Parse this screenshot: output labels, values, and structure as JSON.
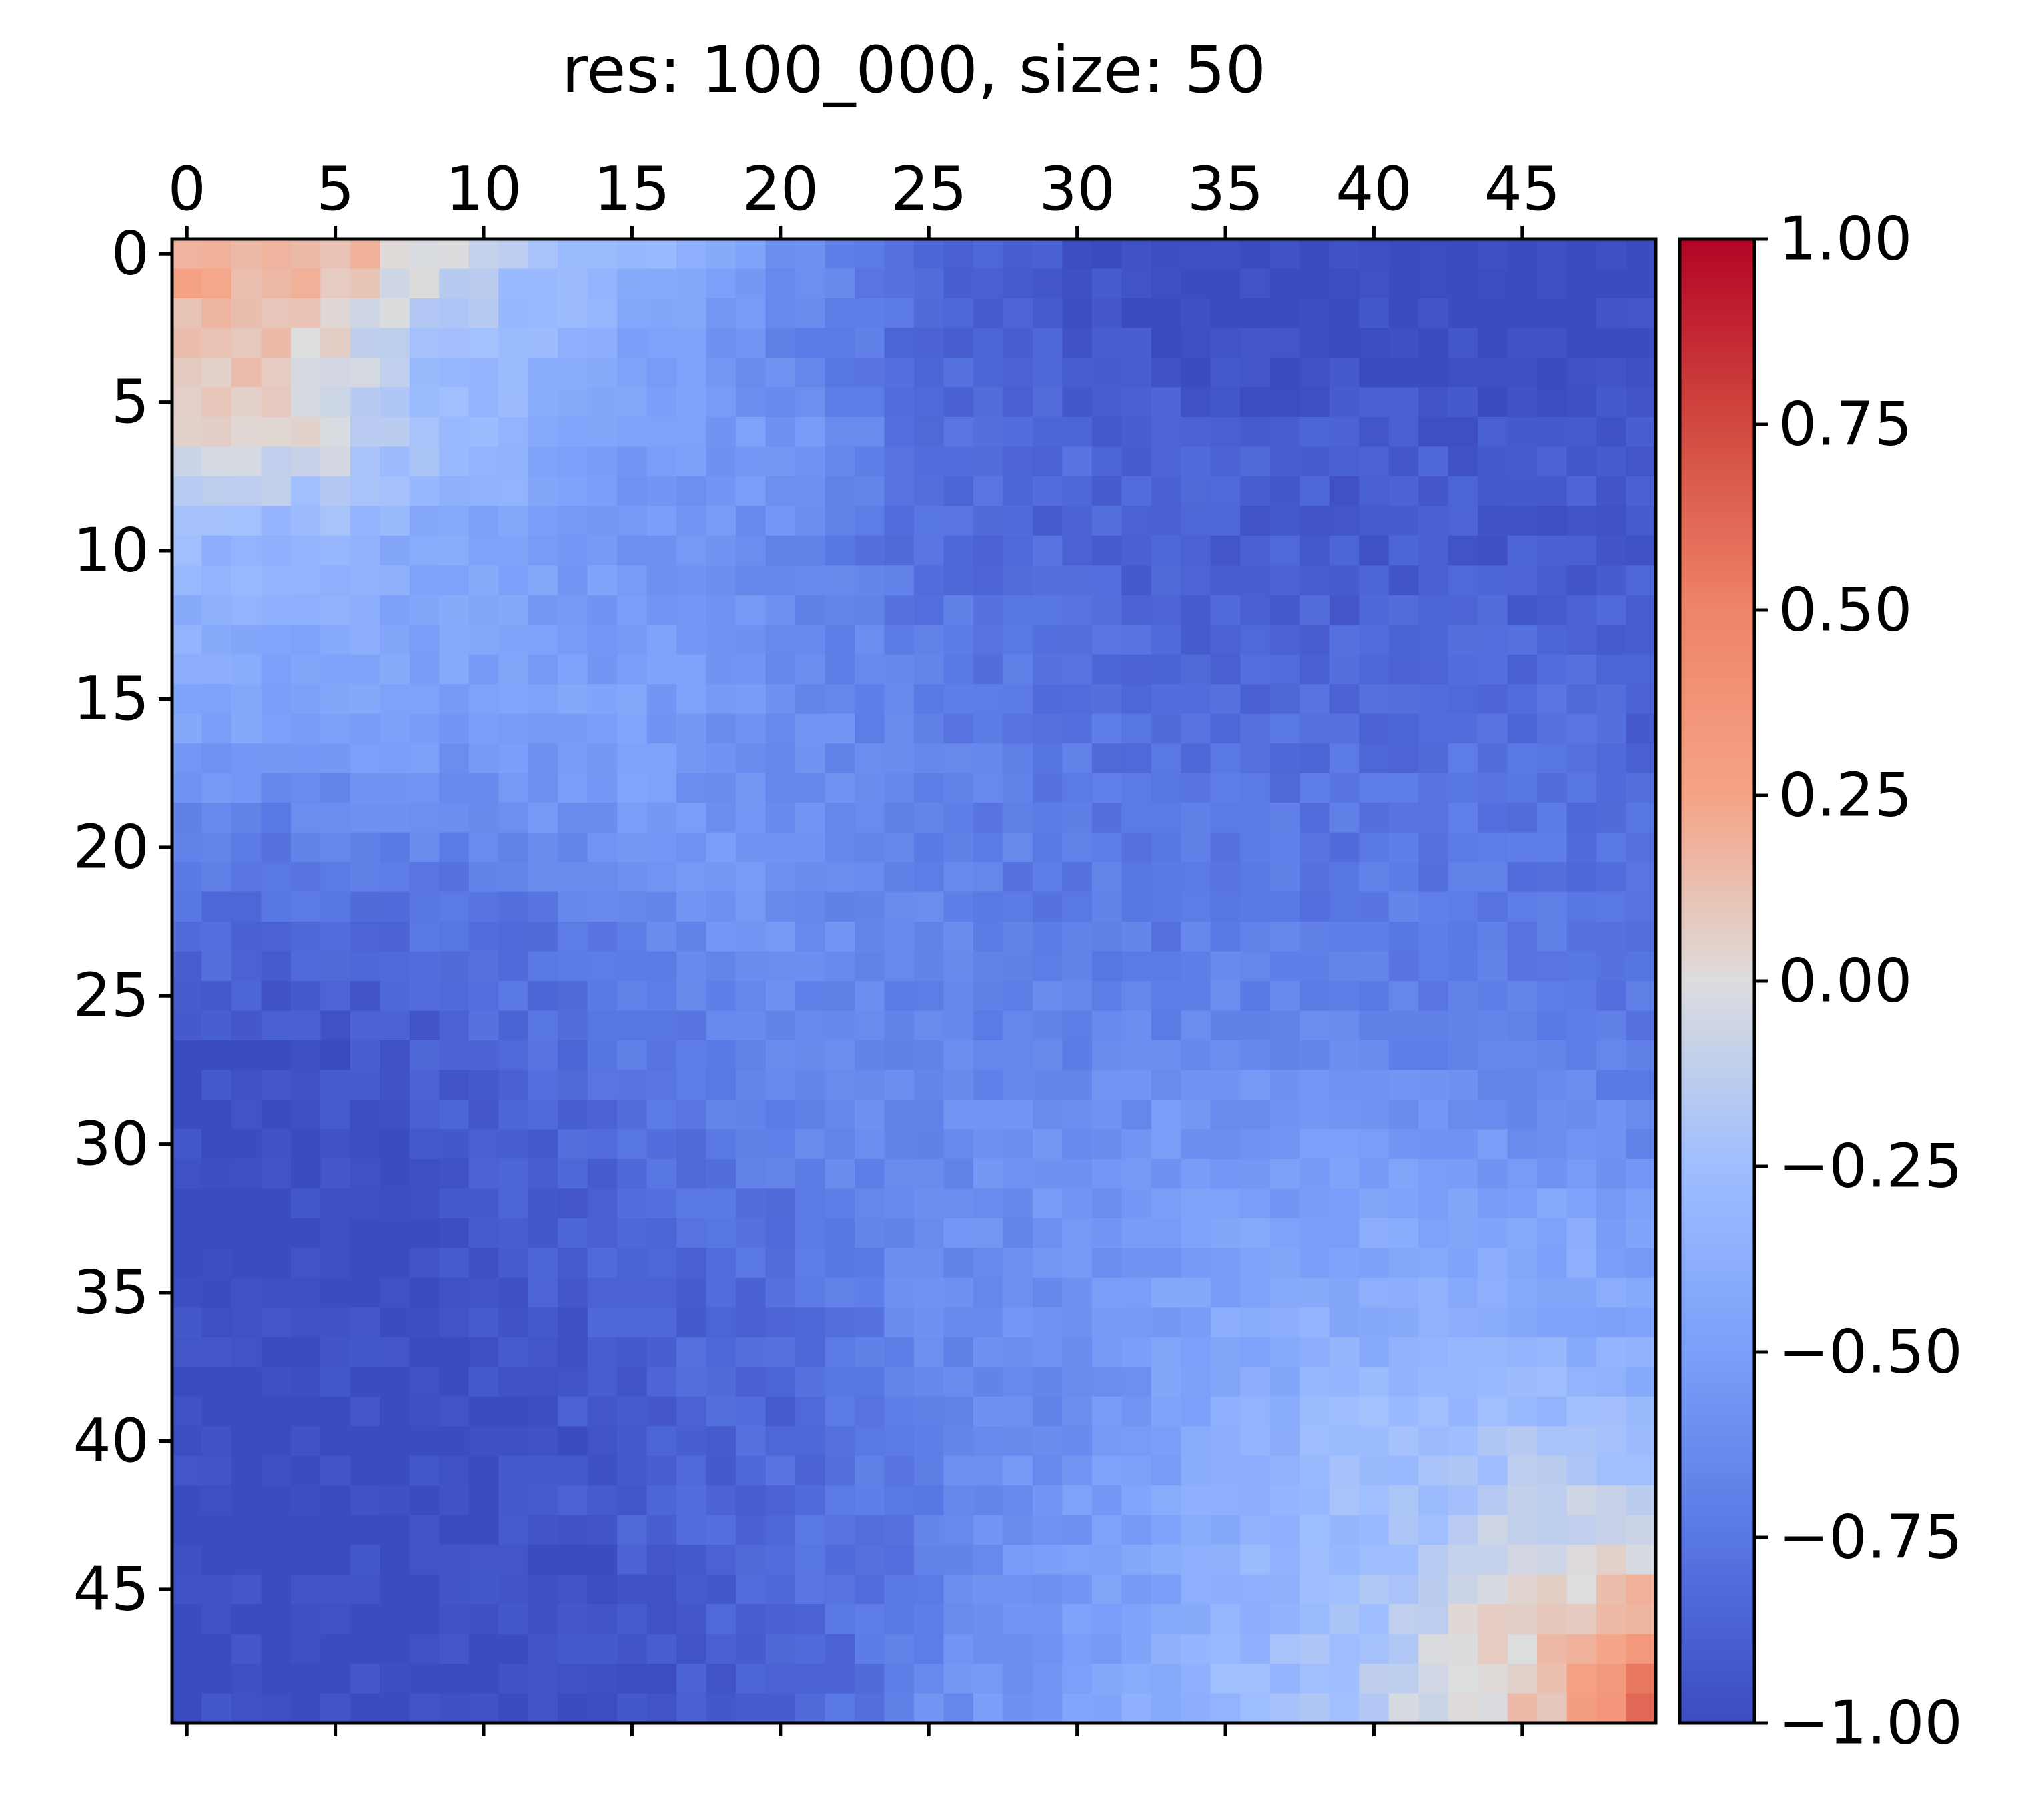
{
  "chart_data": {
    "type": "heatmap",
    "title": "res: 100_000, size: 50",
    "size": 50,
    "x_ticks": [
      0,
      5,
      10,
      15,
      20,
      25,
      30,
      35,
      40,
      45
    ],
    "y_ticks": [
      0,
      5,
      10,
      15,
      20,
      25,
      30,
      35,
      40,
      45
    ],
    "x_tick_labels": [
      "0",
      "5",
      "10",
      "15",
      "20",
      "25",
      "30",
      "35",
      "40",
      "45"
    ],
    "y_tick_labels": [
      "0",
      "5",
      "10",
      "15",
      "20",
      "25",
      "30",
      "35",
      "40",
      "45"
    ],
    "x_axis_position": "top",
    "colormap": "coolwarm",
    "colorbar": {
      "vmin": -1.0,
      "vmax": 1.0,
      "ticks": [
        1.0,
        0.75,
        0.5,
        0.25,
        0.0,
        -0.25,
        -0.5,
        -0.75,
        -1.0
      ],
      "tick_labels": [
        "1.00",
        "0.75",
        "0.50",
        "0.25",
        "0.00",
        "−0.25",
        "−0.50",
        "−0.75",
        "−1.00"
      ]
    },
    "grid": false,
    "anchor_rows": [
      [
        0.25,
        0.22,
        0.18,
        0.05,
        -0.12,
        -0.22,
        -0.3,
        -0.4,
        -0.55,
        -0.68,
        -0.8,
        -0.9,
        -0.95,
        -1.0,
        -1.0,
        -1.0,
        -1.0,
        -1.0,
        -1.0,
        -1.0,
        -1.0
      ],
      [
        0.12,
        0.1,
        0.02,
        -0.18,
        -0.28,
        -0.35,
        -0.45,
        -0.55,
        -0.62,
        -0.72,
        -0.82,
        -0.88,
        -0.9,
        -0.95,
        -1.0,
        -1.0,
        -1.0,
        -1.0,
        -1.0,
        -1.0,
        -1.0
      ],
      [
        0.02,
        0.0,
        -0.05,
        -0.2,
        -0.3,
        -0.4,
        -0.48,
        -0.52,
        -0.5,
        -0.6,
        -0.75,
        -0.8,
        -0.82,
        -0.85,
        -0.88,
        -0.9,
        -0.9,
        -0.9,
        -0.92,
        -0.92,
        -0.92
      ],
      [
        -0.3,
        -0.32,
        -0.35,
        -0.4,
        -0.45,
        -0.48,
        -0.55,
        -0.6,
        -0.62,
        -0.7,
        -0.78,
        -0.82,
        -0.85,
        -0.88,
        -0.88,
        -0.9,
        -0.92,
        -0.92,
        -0.92,
        -0.92,
        -0.92
      ],
      [
        -0.4,
        -0.4,
        -0.42,
        -0.45,
        -0.48,
        -0.48,
        -0.5,
        -0.55,
        -0.6,
        -0.65,
        -0.72,
        -0.75,
        -0.78,
        -0.82,
        -0.85,
        -0.85,
        -0.85,
        -0.85,
        -0.85,
        -0.85,
        -0.88
      ],
      [
        -0.5,
        -0.5,
        -0.5,
        -0.52,
        -0.55,
        -0.5,
        -0.48,
        -0.55,
        -0.6,
        -0.62,
        -0.7,
        -0.72,
        -0.75,
        -0.78,
        -0.8,
        -0.8,
        -0.8,
        -0.8,
        -0.8,
        -0.82,
        -0.85
      ],
      [
        -0.7,
        -0.72,
        -0.7,
        -0.68,
        -0.65,
        -0.6,
        -0.55,
        -0.55,
        -0.58,
        -0.62,
        -0.68,
        -0.7,
        -0.72,
        -0.75,
        -0.75,
        -0.75,
        -0.75,
        -0.75,
        -0.75,
        -0.78,
        -0.8
      ],
      [
        -0.8,
        -0.82,
        -0.82,
        -0.8,
        -0.78,
        -0.75,
        -0.7,
        -0.62,
        -0.6,
        -0.62,
        -0.68,
        -0.7,
        -0.72,
        -0.72,
        -0.72,
        -0.72,
        -0.72,
        -0.72,
        -0.72,
        -0.75,
        -0.78
      ],
      [
        -0.92,
        -0.95,
        -0.95,
        -0.9,
        -0.85,
        -0.8,
        -0.75,
        -0.7,
        -0.68,
        -0.66,
        -0.66,
        -0.68,
        -0.68,
        -0.68,
        -0.65,
        -0.65,
        -0.68,
        -0.7,
        -0.7,
        -0.72,
        -0.75
      ],
      [
        -1.0,
        -1.0,
        -0.98,
        -0.95,
        -0.9,
        -0.85,
        -0.8,
        -0.75,
        -0.7,
        -0.65,
        -0.62,
        -0.62,
        -0.6,
        -0.58,
        -0.55,
        -0.55,
        -0.55,
        -0.58,
        -0.6,
        -0.6,
        -0.65
      ],
      [
        -1.0,
        -1.0,
        -1.0,
        -1.0,
        -0.95,
        -0.9,
        -0.85,
        -0.82,
        -0.78,
        -0.7,
        -0.62,
        -0.6,
        -0.58,
        -0.55,
        -0.52,
        -0.48,
        -0.45,
        -0.45,
        -0.45,
        -0.45,
        -0.5
      ],
      [
        -1.0,
        -1.0,
        -1.0,
        -1.0,
        -0.98,
        -0.92,
        -0.88,
        -0.85,
        -0.82,
        -0.75,
        -0.65,
        -0.62,
        -0.58,
        -0.52,
        -0.45,
        -0.4,
        -0.38,
        -0.38,
        -0.38,
        -0.4,
        -0.45
      ],
      [
        -1.0,
        -1.0,
        -1.0,
        -1.0,
        -1.0,
        -0.95,
        -0.9,
        -0.85,
        -0.85,
        -0.8,
        -0.72,
        -0.65,
        -0.6,
        -0.55,
        -0.45,
        -0.38,
        -0.3,
        -0.28,
        -0.25,
        -0.25,
        -0.3
      ],
      [
        -1.0,
        -1.0,
        -1.0,
        -1.0,
        -1.0,
        -0.95,
        -0.9,
        -0.85,
        -0.82,
        -0.78,
        -0.7,
        -0.62,
        -0.55,
        -0.48,
        -0.4,
        -0.32,
        -0.25,
        -0.2,
        -0.15,
        -0.1,
        -0.1
      ],
      [
        -1.0,
        -1.0,
        -1.0,
        -1.0,
        -1.0,
        -0.98,
        -0.95,
        -0.9,
        -0.85,
        -0.8,
        -0.72,
        -0.6,
        -0.55,
        -0.48,
        -0.4,
        -0.3,
        -0.22,
        -0.12,
        0.02,
        0.1,
        0.2
      ],
      [
        -1.0,
        -1.0,
        -1.0,
        -1.0,
        -1.0,
        -1.0,
        -0.95,
        -0.92,
        -0.88,
        -0.8,
        -0.65,
        -0.55,
        -0.48,
        -0.4,
        -0.3,
        -0.25,
        -0.2,
        -0.05,
        0.05,
        0.15,
        0.6
      ]
    ]
  }
}
